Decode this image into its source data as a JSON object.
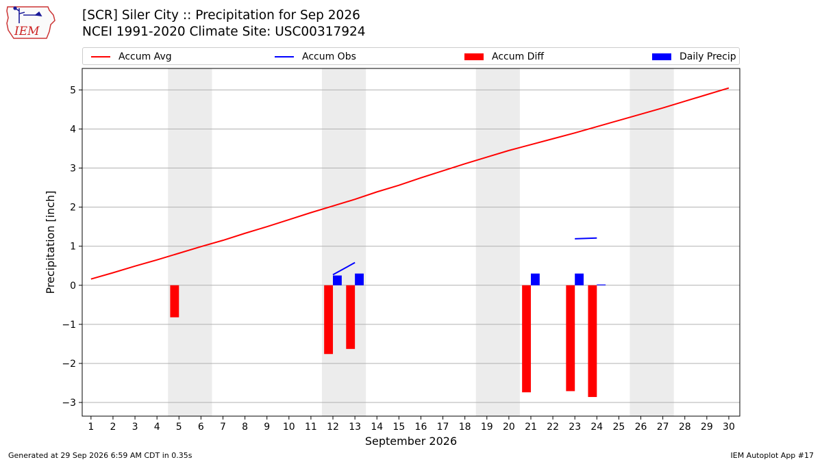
{
  "header": {
    "title_line1": "[SCR] Siler City :: Precipitation for Sep 2026",
    "title_line2": "NCEI 1991-2020 Climate Site: USC00317924"
  },
  "logo": {
    "text": "IEM",
    "icon": "iowa-state-outline-weather-logo"
  },
  "footer": {
    "generated": "Generated at 29 Sep 2026 6:59 AM CDT in 0.35s",
    "app": "IEM Autoplot App #17"
  },
  "chart_data": {
    "type": "bar",
    "xlabel": "September 2026",
    "ylabel": "Precipitation [inch]",
    "xlim": [
      0.6,
      30.5
    ],
    "ylim": [
      -3.35,
      5.55
    ],
    "yticks": [
      -3,
      -2,
      -1,
      0,
      1,
      2,
      3,
      4,
      5
    ],
    "ytick_labels": [
      "−3",
      "−2",
      "−1",
      "0",
      "1",
      "2",
      "3",
      "4",
      "5"
    ],
    "grid": "y",
    "legend_position": "top",
    "weekend_shading": [
      [
        4.5,
        6.5
      ],
      [
        11.5,
        13.5
      ],
      [
        18.5,
        20.5
      ],
      [
        25.5,
        27.5
      ]
    ],
    "days": [
      1,
      2,
      3,
      4,
      5,
      6,
      7,
      8,
      9,
      10,
      11,
      12,
      13,
      14,
      15,
      16,
      17,
      18,
      19,
      20,
      21,
      22,
      23,
      24,
      25,
      26,
      27,
      28,
      29,
      30
    ],
    "legend": [
      {
        "name": "Accum Avg",
        "kind": "line",
        "color": "#ff0000"
      },
      {
        "name": "Accum Obs",
        "kind": "line",
        "color": "#0000ff"
      },
      {
        "name": "Accum Diff",
        "kind": "bar",
        "color": "#ff0000"
      },
      {
        "name": "Daily Precip",
        "kind": "bar",
        "color": "#0000ff"
      }
    ],
    "series": [
      {
        "name": "Accum Avg",
        "type": "line",
        "color": "#ff0000",
        "x": [
          1,
          2,
          3,
          4,
          5,
          6,
          7,
          8,
          9,
          10,
          11,
          12,
          13,
          14,
          15,
          16,
          17,
          18,
          19,
          20,
          21,
          22,
          23,
          24,
          25,
          26,
          27,
          28,
          29,
          30
        ],
        "values": [
          0.16,
          0.32,
          0.49,
          0.65,
          0.82,
          0.99,
          1.15,
          1.33,
          1.5,
          1.68,
          1.86,
          2.03,
          2.2,
          2.39,
          2.56,
          2.75,
          2.93,
          3.11,
          3.28,
          3.45,
          3.6,
          3.75,
          3.9,
          4.06,
          4.22,
          4.38,
          4.54,
          4.71,
          4.88,
          5.05
        ]
      },
      {
        "name": "Accum Obs",
        "type": "line",
        "color": "#0000ff",
        "segments": [
          {
            "x": [
              12,
              13
            ],
            "values": [
              0.27,
              0.58
            ]
          },
          {
            "x": [
              23,
              24
            ],
            "values": [
              1.19,
              1.21
            ]
          }
        ]
      },
      {
        "name": "Accum Diff",
        "type": "bar",
        "color": "#ff0000",
        "x": [
          5,
          12,
          13,
          21,
          23,
          24
        ],
        "values": [
          -0.82,
          -1.76,
          -1.63,
          -2.74,
          -2.71,
          -2.86
        ]
      },
      {
        "name": "Daily Precip",
        "type": "bar",
        "color": "#0000ff",
        "x": [
          12,
          13,
          21,
          23,
          24
        ],
        "values": [
          0.25,
          0.3,
          0.3,
          0.3,
          0.02
        ]
      }
    ]
  }
}
